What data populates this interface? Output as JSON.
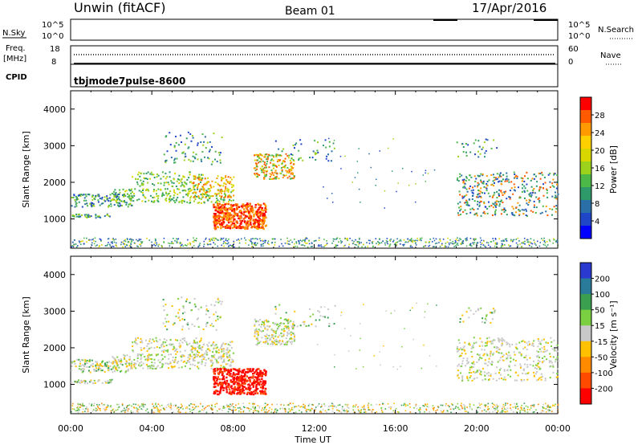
{
  "header": {
    "title": "Unwin (fitACF)",
    "beam": "Beam 01",
    "date": "17/Apr/2016",
    "nsky_label": "N.Sky",
    "freq_label_1": "Freq.",
    "freq_label_2": "[MHz]",
    "cpid_label": "CPID",
    "nsearch_label": "N.Search",
    "nave_label": "Nave",
    "cpid_text": "tbjmode7pulse",
    "cpid_number": "-8600",
    "nsky_ticks": [
      "10^5",
      "10^0"
    ],
    "nsearch_ticks": [
      "10^5",
      "10^0"
    ],
    "freq_ticks": [
      "18",
      "8"
    ],
    "nave_ticks": [
      "60",
      "0"
    ]
  },
  "chart_data": [
    {
      "type": "heatmap",
      "name_field": "power",
      "ylabel": "Slant Range [km]",
      "xlabel": "",
      "ylim": [
        200,
        4500
      ],
      "y_ticks": [
        1000,
        2000,
        3000,
        4000
      ],
      "colorbar_label": "Power [dB]",
      "colorbar_ticks": [
        "28",
        "24",
        "20",
        "16",
        "12",
        "8",
        "4"
      ],
      "colorbar_colors": [
        "#ff0000",
        "#ff5a00",
        "#ff9a00",
        "#ffd000",
        "#d8d800",
        "#9cd11c",
        "#4cb848",
        "#2e9a6a",
        "#2a6fa8",
        "#2046c8",
        "#0000ff"
      ]
    },
    {
      "type": "heatmap",
      "name_field": "velocity",
      "ylabel": "Slant Range [km]",
      "xlabel": "Time UT",
      "ylim": [
        200,
        4500
      ],
      "y_ticks": [
        1000,
        2000,
        3000,
        4000
      ],
      "x_ticks": [
        "00:00",
        "04:00",
        "08:00",
        "12:00",
        "16:00",
        "20:00",
        "00:00"
      ],
      "colorbar_label": "Velocity [m s⁻¹]",
      "colorbar_ticks": [
        "200",
        "100",
        "50",
        "15",
        "-15",
        "-50",
        "-100",
        "-200"
      ],
      "colorbar_colors": [
        "#2a3ad0",
        "#2a7a9a",
        "#3aa050",
        "#7ad040",
        "#c8c8c8",
        "#ffc000",
        "#ff8a00",
        "#ff4a00",
        "#ff0000"
      ]
    }
  ]
}
